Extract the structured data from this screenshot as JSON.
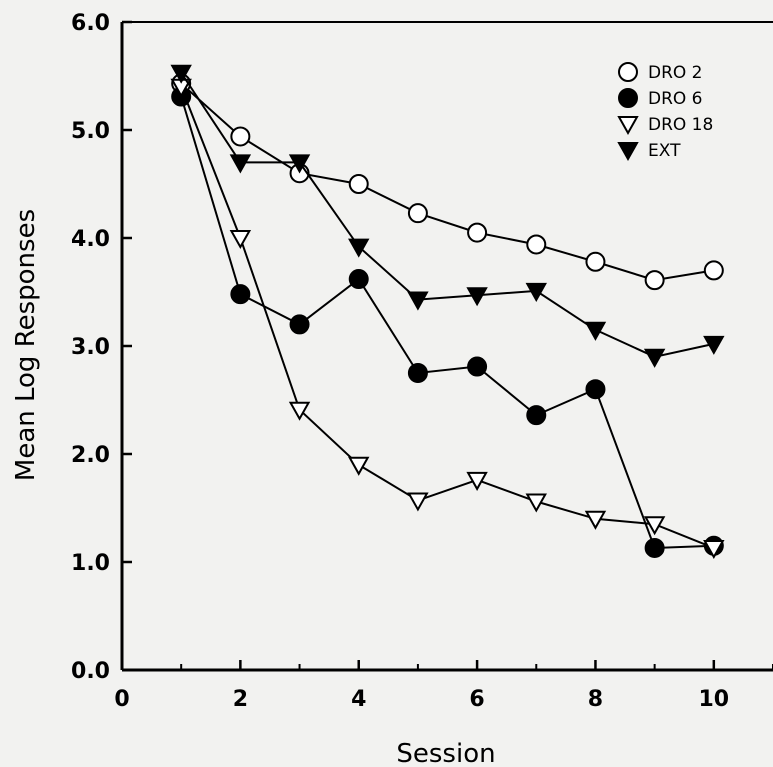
{
  "chart_data": {
    "type": "line",
    "title": "",
    "xlabel": "Session",
    "ylabel": "Mean Log Responses",
    "xlim": [
      0,
      11
    ],
    "ylim": [
      0,
      6
    ],
    "x_ticks": [
      0,
      2,
      4,
      6,
      8,
      10
    ],
    "x_tick_labels": [
      "0",
      "2",
      "4",
      "6",
      "8",
      "10"
    ],
    "y_ticks": [
      0,
      1,
      2,
      3,
      4,
      5,
      6
    ],
    "y_tick_labels": [
      "0.0",
      "1.0",
      "2.0",
      "3.0",
      "4.0",
      "5.0",
      "6.0"
    ],
    "grid": false,
    "legend_position": "top-right",
    "x": [
      1,
      2,
      3,
      4,
      5,
      6,
      7,
      8,
      9,
      10
    ],
    "series": [
      {
        "name": "DRO 2",
        "marker": "circle-open",
        "values": [
          5.43,
          4.94,
          4.6,
          4.5,
          4.23,
          4.05,
          3.94,
          3.78,
          3.61,
          3.7
        ]
      },
      {
        "name": "DRO 6",
        "marker": "circle-filled",
        "values": [
          5.31,
          3.48,
          3.2,
          3.62,
          2.75,
          2.81,
          2.36,
          2.6,
          1.13,
          1.15
        ]
      },
      {
        "name": "DRO 18",
        "marker": "triangle-open",
        "values": [
          5.4,
          4.0,
          2.41,
          1.9,
          1.57,
          1.76,
          1.56,
          1.4,
          1.35,
          1.13
        ]
      },
      {
        "name": "EXT",
        "marker": "triangle-filled",
        "values": [
          5.53,
          4.7,
          4.7,
          3.92,
          3.43,
          3.47,
          3.51,
          3.15,
          2.9,
          3.02
        ]
      }
    ]
  }
}
